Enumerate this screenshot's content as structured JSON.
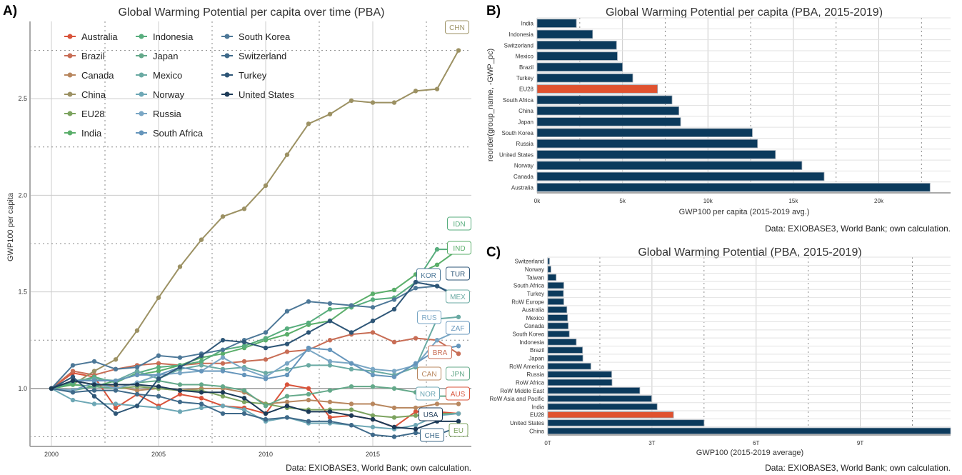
{
  "panels": {
    "a_label": "A)",
    "b_label": "B)",
    "c_label": "C)"
  },
  "colors": {
    "navy": "#0b3a5c",
    "eu_highlight": "#e0522f",
    "grid": "#cccccc",
    "dotted": "#888888"
  },
  "chart_data": [
    {
      "type": "line",
      "title": "Global Warming Potential per capita over time (PBA)",
      "ylabel": "GWP100 per capita",
      "xlabel": "",
      "caption": "Data: EXIOBASE3, World Bank; own calculation.",
      "x": [
        2000,
        2001,
        2002,
        2003,
        2004,
        2005,
        2006,
        2007,
        2008,
        2009,
        2010,
        2011,
        2012,
        2013,
        2014,
        2015,
        2016,
        2017,
        2018,
        2019
      ],
      "xlim": [
        1999,
        2019.6
      ],
      "ylim": [
        0.7,
        2.9
      ],
      "xticks": [
        "2000",
        "2005",
        "2010",
        "2015"
      ],
      "yticks": [
        "1.0",
        "1.5",
        "2.0",
        "2.5"
      ],
      "legend_position": "top-left",
      "series": [
        {
          "name": "Australia",
          "color": "#d9533a",
          "label": "AUS",
          "values": [
            1.0,
            1.08,
            1.06,
            0.9,
            0.97,
            0.91,
            0.97,
            0.95,
            0.91,
            0.9,
            0.87,
            1.02,
            1.0,
            0.85,
            0.86,
            0.84,
            0.8,
            0.88,
            0.88,
            0.87
          ]
        },
        {
          "name": "Brazil",
          "color": "#c86d55",
          "label": "BRA",
          "values": [
            1.0,
            1.09,
            1.07,
            1.1,
            1.12,
            1.13,
            1.12,
            1.13,
            1.13,
            1.14,
            1.15,
            1.19,
            1.2,
            1.25,
            1.28,
            1.29,
            1.24,
            1.26,
            1.25,
            1.18
          ]
        },
        {
          "name": "Canada",
          "color": "#b8875f",
          "label": "CAN",
          "values": [
            1.0,
            1.04,
            1.02,
            1.01,
            0.99,
            1.0,
            0.99,
            1.0,
            1.0,
            0.98,
            0.92,
            0.93,
            0.94,
            0.93,
            0.92,
            0.92,
            0.9,
            0.9,
            0.92,
            0.92
          ]
        },
        {
          "name": "China",
          "color": "#9c9163",
          "label": "CHN",
          "values": [
            1.0,
            1.02,
            1.09,
            1.15,
            1.3,
            1.47,
            1.63,
            1.77,
            1.89,
            1.93,
            2.05,
            2.21,
            2.37,
            2.42,
            2.49,
            2.48,
            2.48,
            2.54,
            2.55,
            2.75
          ]
        },
        {
          "name": "EU28",
          "color": "#7ca35f",
          "label": "EU",
          "values": [
            1.0,
            1.02,
            1.01,
            1.0,
            1.01,
            1.0,
            0.99,
            0.99,
            0.96,
            0.93,
            0.92,
            0.9,
            0.89,
            0.89,
            0.89,
            0.86,
            0.85,
            0.86,
            0.87,
            0.87
          ]
        },
        {
          "name": "India",
          "color": "#5aae6a",
          "label": "IND",
          "values": [
            1.0,
            1.02,
            1.01,
            1.04,
            1.07,
            1.09,
            1.12,
            1.16,
            1.18,
            1.21,
            1.25,
            1.28,
            1.33,
            1.35,
            1.43,
            1.49,
            1.51,
            1.59,
            1.64,
            1.72
          ]
        },
        {
          "name": "Indonesia",
          "color": "#57ad7d",
          "label": "IDN",
          "values": [
            1.0,
            1.03,
            1.06,
            1.03,
            1.08,
            1.11,
            1.12,
            1.14,
            1.2,
            1.22,
            1.26,
            1.31,
            1.34,
            1.41,
            1.42,
            1.46,
            1.47,
            1.55,
            1.72,
            1.72
          ]
        },
        {
          "name": "Japan",
          "color": "#64a98a",
          "label": "JPN",
          "values": [
            1.0,
            0.99,
            1.01,
            1.0,
            1.03,
            1.04,
            1.02,
            1.02,
            1.01,
            0.99,
            0.91,
            0.96,
            0.97,
            0.99,
            1.01,
            1.01,
            1.0,
            0.98,
            0.96,
            0.96
          ]
        },
        {
          "name": "Mexico",
          "color": "#6aaaa3",
          "label": "MEX",
          "values": [
            1.0,
            1.04,
            1.05,
            1.04,
            1.09,
            1.05,
            1.1,
            1.12,
            1.1,
            1.11,
            1.08,
            1.1,
            1.12,
            1.12,
            1.1,
            1.09,
            1.07,
            1.11,
            1.36,
            1.37
          ]
        },
        {
          "name": "Norway",
          "color": "#6da7b5",
          "label": "NOR",
          "values": [
            1.0,
            0.94,
            0.92,
            0.92,
            0.91,
            0.9,
            0.88,
            0.9,
            0.91,
            0.89,
            0.83,
            0.85,
            0.82,
            0.82,
            0.81,
            0.8,
            0.79,
            0.81,
            0.86,
            0.87
          ]
        },
        {
          "name": "Russia",
          "color": "#79a6c4",
          "label": "RUS",
          "values": [
            1.0,
            0.99,
            1.03,
            1.0,
            1.03,
            1.07,
            1.08,
            1.09,
            1.16,
            1.1,
            1.06,
            1.13,
            1.2,
            1.14,
            1.13,
            1.1,
            1.09,
            1.12,
            1.25,
            1.3
          ]
        },
        {
          "name": "South Africa",
          "color": "#6595bb",
          "label": "ZAF",
          "values": [
            1.0,
            1.04,
            1.04,
            1.04,
            1.07,
            1.07,
            1.11,
            1.09,
            1.09,
            1.07,
            1.05,
            1.07,
            1.21,
            1.2,
            1.13,
            1.07,
            1.06,
            1.13,
            1.2,
            1.22
          ]
        },
        {
          "name": "South Korea",
          "color": "#4d7898",
          "label": "KOR",
          "values": [
            1.0,
            1.12,
            1.14,
            1.1,
            1.11,
            1.17,
            1.16,
            1.18,
            1.2,
            1.25,
            1.29,
            1.4,
            1.45,
            1.44,
            1.43,
            1.42,
            1.46,
            1.52,
            1.53,
            1.48
          ]
        },
        {
          "name": "Switzerland",
          "color": "#3f6a8a",
          "label": "CHE",
          "values": [
            1.0,
            0.98,
            0.99,
            0.99,
            0.97,
            0.96,
            0.93,
            0.92,
            0.87,
            0.87,
            0.84,
            0.85,
            0.83,
            0.83,
            0.81,
            0.76,
            0.75,
            0.77,
            0.76,
            0.8
          ]
        },
        {
          "name": "Turkey",
          "color": "#2e5677",
          "label": "TUR",
          "values": [
            1.0,
            1.06,
            0.96,
            0.87,
            0.91,
            1.05,
            1.11,
            1.17,
            1.25,
            1.24,
            1.21,
            1.23,
            1.29,
            1.35,
            1.29,
            1.35,
            1.41,
            1.55,
            1.53,
            1.47
          ]
        },
        {
          "name": "United States",
          "color": "#1c3a57",
          "label": "USA",
          "values": [
            1.0,
            1.04,
            1.02,
            1.02,
            1.02,
            1.01,
            0.99,
            0.98,
            0.98,
            0.95,
            0.87,
            0.91,
            0.88,
            0.88,
            0.86,
            0.84,
            0.8,
            0.79,
            0.83,
            0.83
          ]
        }
      ]
    },
    {
      "type": "bar",
      "orientation": "horizontal",
      "title": "Global Warming Potential per capita (PBA, 2015-2019)",
      "xlabel": "GWP100 per capita (2015-2019 avg.)",
      "ylabel": "reorder(group_name, -GWP_pc)",
      "caption": "Data: EXIOBASE3, World Bank; own calculation.",
      "xlim": [
        0,
        24200
      ],
      "xticks": [
        {
          "v": 0,
          "t": "0k"
        },
        {
          "v": 5000,
          "t": "5k"
        },
        {
          "v": 10000,
          "t": "10k"
        },
        {
          "v": 15000,
          "t": "15k"
        },
        {
          "v": 20000,
          "t": "20k"
        }
      ],
      "categories": [
        "India",
        "Indonesia",
        "Switzerland",
        "Mexico",
        "Brazil",
        "Turkey",
        "EU28",
        "South Africa",
        "China",
        "Japan",
        "South Korea",
        "Russia",
        "United States",
        "Norway",
        "Canada",
        "Australia"
      ],
      "values": [
        2300,
        3250,
        4650,
        4700,
        5000,
        5600,
        7050,
        7900,
        8300,
        8400,
        12600,
        12900,
        13950,
        15500,
        16800,
        23000
      ],
      "highlight": "EU28"
    },
    {
      "type": "bar",
      "orientation": "horizontal",
      "title": "Global Warming Potential (PBA, 2015-2019)",
      "xlabel": "GWP100 (2015-2019 average)",
      "ylabel": "",
      "caption": "Data: EXIOBASE3, World Bank; own calculation.",
      "xlim": [
        0,
        11.6
      ],
      "xticks": [
        {
          "v": 0,
          "t": "0T"
        },
        {
          "v": 3,
          "t": "3T"
        },
        {
          "v": 6,
          "t": "6T"
        },
        {
          "v": 9,
          "t": "9T"
        }
      ],
      "categories": [
        "Switzerland",
        "Norway",
        "Taiwan",
        "South Africa",
        "Turkey",
        "RoW Europe",
        "Australia",
        "Mexico",
        "Canada",
        "South Korea",
        "Indonesia",
        "Brazil",
        "Japan",
        "RoW America",
        "Russia",
        "RoW Africa",
        "RoW Middle East",
        "RoW Asia and Pacific",
        "India",
        "EU28",
        "United States",
        "China"
      ],
      "values": [
        0.05,
        0.09,
        0.24,
        0.46,
        0.45,
        0.46,
        0.55,
        0.57,
        0.59,
        0.62,
        0.82,
        1.0,
        1.01,
        1.24,
        1.84,
        1.85,
        2.65,
        2.99,
        3.15,
        3.62,
        4.5,
        11.6
      ],
      "highlight": "EU28"
    }
  ]
}
